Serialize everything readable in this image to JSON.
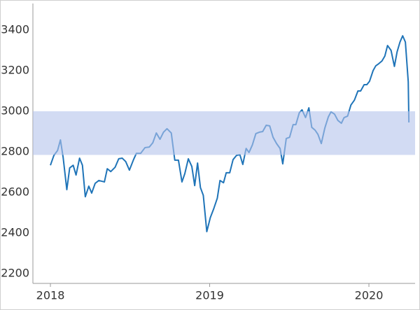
{
  "chart_data": {
    "type": "line",
    "x": [
      2018.0,
      2018.022,
      2018.045,
      2018.063,
      2018.08,
      2018.103,
      2018.121,
      2018.143,
      2018.161,
      2018.183,
      2018.201,
      2018.219,
      2018.241,
      2018.259,
      2018.281,
      2018.304,
      2018.339,
      2018.357,
      2018.379,
      2018.406,
      2018.429,
      2018.451,
      2018.473,
      2018.496,
      2018.522,
      2018.54,
      2018.567,
      2018.594,
      2018.621,
      2018.643,
      2018.665,
      2018.688,
      2018.71,
      2018.732,
      2018.759,
      2018.781,
      2018.804,
      2018.826,
      2018.844,
      2018.866,
      2018.888,
      2018.906,
      2018.924,
      2018.942,
      2018.96,
      2018.982,
      2019.004,
      2019.026,
      2019.048,
      2019.065,
      2019.087,
      2019.104,
      2019.126,
      2019.147,
      2019.169,
      2019.19,
      2019.208,
      2019.229,
      2019.247,
      2019.268,
      2019.29,
      2019.312,
      2019.333,
      2019.355,
      2019.377,
      2019.398,
      2019.42,
      2019.442,
      2019.459,
      2019.481,
      2019.502,
      2019.524,
      2019.541,
      2019.563,
      2019.58,
      2019.602,
      2019.623,
      2019.641,
      2019.662,
      2019.68,
      2019.701,
      2019.723,
      2019.745,
      2019.762,
      2019.784,
      2019.805,
      2019.827,
      2019.844,
      2019.866,
      2019.887,
      2019.909,
      2019.931,
      2019.948,
      2019.97,
      2019.987,
      2020.004,
      2020.026,
      2020.043,
      2020.061,
      2020.082,
      2020.1,
      2020.117,
      2020.139,
      2020.16,
      2020.177,
      2020.195,
      2020.212,
      2020.229,
      2020.247,
      2020.251
    ],
    "series": [
      {
        "color": "#1f74b8",
        "values": [
          2734,
          2783,
          2807,
          2859,
          2772,
          2614,
          2721,
          2734,
          2686,
          2769,
          2734,
          2579,
          2631,
          2597,
          2645,
          2659,
          2652,
          2717,
          2703,
          2724,
          2766,
          2769,
          2752,
          2710,
          2762,
          2793,
          2793,
          2821,
          2824,
          2845,
          2893,
          2862,
          2897,
          2914,
          2893,
          2759,
          2759,
          2652,
          2693,
          2766,
          2728,
          2634,
          2745,
          2624,
          2586,
          2407,
          2476,
          2521,
          2572,
          2659,
          2648,
          2697,
          2697,
          2762,
          2783,
          2786,
          2738,
          2817,
          2797,
          2834,
          2890,
          2897,
          2900,
          2931,
          2928,
          2872,
          2841,
          2817,
          2741,
          2866,
          2872,
          2934,
          2934,
          2993,
          3007,
          2969,
          3017,
          2921,
          2907,
          2886,
          2841,
          2917,
          2972,
          2997,
          2986,
          2955,
          2941,
          2969,
          2976,
          3031,
          3055,
          3100,
          3100,
          3131,
          3131,
          3148,
          3200,
          3224,
          3234,
          3248,
          3272,
          3324,
          3300,
          3221,
          3293,
          3341,
          3372,
          3341,
          3145,
          2945
        ]
      }
    ],
    "band": {
      "range": [
        2785,
        3000
      ],
      "color": "#b4c3eb"
    },
    "xlim": [
      2017.89,
      2020.29
    ],
    "xticks": [
      2018,
      2019,
      2020
    ],
    "ylim": [
      2152,
      3531
    ],
    "yticks": [
      2200,
      2400,
      2600,
      2800,
      3000,
      3200,
      3400
    ]
  }
}
